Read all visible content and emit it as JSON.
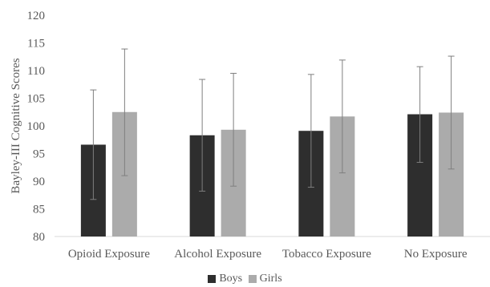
{
  "chart_data": {
    "type": "bar",
    "title": "",
    "xlabel": "",
    "ylabel": "Bayley-III Cognitive Scores",
    "ylim": [
      80,
      120
    ],
    "yticks": [
      80,
      85,
      90,
      95,
      100,
      105,
      110,
      115,
      120
    ],
    "categories": [
      "Opioid Exposure",
      "Alcohol Exposure",
      "Tobacco Exposure",
      "No Exposure"
    ],
    "series": [
      {
        "name": "Boys",
        "color": "#2e2e2e",
        "values": [
          96.6,
          98.3,
          99.1,
          102.1
        ],
        "error_low": [
          86.7,
          88.2,
          88.9,
          93.4
        ],
        "error_high": [
          106.5,
          108.4,
          109.3,
          110.7
        ]
      },
      {
        "name": "Girls",
        "color": "#ababab",
        "values": [
          102.5,
          99.3,
          101.7,
          102.4
        ],
        "error_low": [
          91.0,
          89.1,
          91.5,
          92.2
        ],
        "error_high": [
          113.9,
          109.5,
          111.9,
          112.6
        ]
      }
    ],
    "grid": false,
    "legend_position": "bottom",
    "error_bars": true
  }
}
